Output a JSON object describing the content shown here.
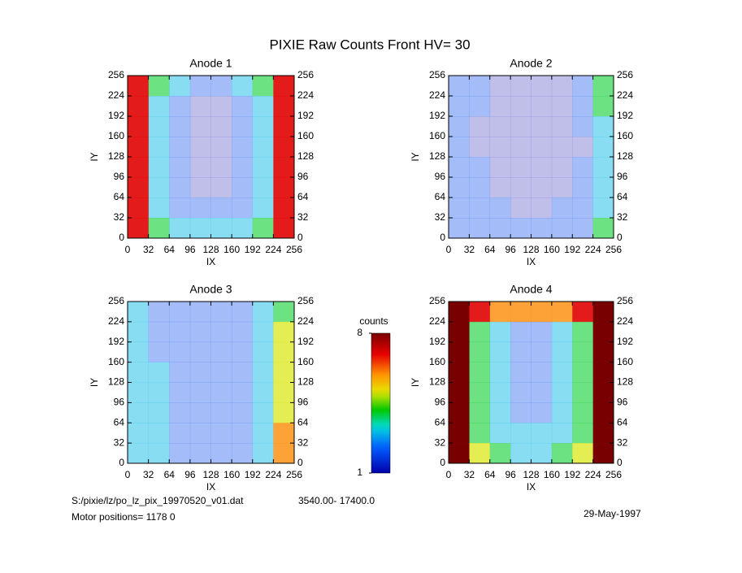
{
  "title": "PIXIE Raw Counts Front HV= 30",
  "chart_data": [
    {
      "type": "heatmap",
      "title": "Anode 1",
      "x_label": "IX",
      "y_label": "IY",
      "xlim": [
        0,
        256
      ],
      "ylim": [
        0,
        256
      ],
      "xticks": [
        0,
        32,
        64,
        96,
        128,
        160,
        192,
        224,
        256
      ],
      "yticks": [
        0,
        32,
        64,
        96,
        128,
        160,
        192,
        224,
        256
      ],
      "values": [
        [
          7,
          4,
          3,
          2,
          2,
          3,
          4,
          7
        ],
        [
          7,
          3,
          2,
          1,
          1,
          2,
          3,
          7
        ],
        [
          7,
          3,
          2,
          1,
          1,
          2,
          3,
          7
        ],
        [
          7,
          3,
          2,
          1,
          1,
          2,
          3,
          7
        ],
        [
          7,
          3,
          2,
          1,
          1,
          2,
          3,
          7
        ],
        [
          7,
          3,
          2,
          1,
          1,
          2,
          3,
          7
        ],
        [
          7,
          3,
          2,
          2,
          2,
          2,
          3,
          7
        ],
        [
          7,
          4,
          3,
          3,
          3,
          3,
          4,
          7
        ]
      ]
    },
    {
      "type": "heatmap",
      "title": "Anode 2",
      "x_label": "IX",
      "y_label": "IY",
      "xlim": [
        0,
        256
      ],
      "ylim": [
        0,
        256
      ],
      "xticks": [
        0,
        32,
        64,
        96,
        128,
        160,
        192,
        224,
        256
      ],
      "yticks": [
        0,
        32,
        64,
        96,
        128,
        160,
        192,
        224,
        256
      ],
      "values": [
        [
          2,
          2,
          1,
          1,
          1,
          1,
          2,
          4
        ],
        [
          2,
          2,
          1,
          1,
          1,
          1,
          2,
          4
        ],
        [
          2,
          1,
          1,
          1,
          1,
          1,
          2,
          3
        ],
        [
          2,
          1,
          1,
          1,
          1,
          1,
          1,
          3
        ],
        [
          2,
          2,
          1,
          1,
          1,
          1,
          2,
          3
        ],
        [
          2,
          2,
          1,
          1,
          1,
          1,
          2,
          3
        ],
        [
          2,
          2,
          2,
          1,
          1,
          2,
          2,
          3
        ],
        [
          2,
          2,
          2,
          2,
          2,
          2,
          2,
          4
        ]
      ]
    },
    {
      "type": "heatmap",
      "title": "Anode 3",
      "x_label": "IX",
      "y_label": "IY",
      "xlim": [
        0,
        256
      ],
      "ylim": [
        0,
        256
      ],
      "xticks": [
        0,
        32,
        64,
        96,
        128,
        160,
        192,
        224,
        256
      ],
      "yticks": [
        0,
        32,
        64,
        96,
        128,
        160,
        192,
        224,
        256
      ],
      "values": [
        [
          3,
          2,
          2,
          2,
          2,
          2,
          3,
          4
        ],
        [
          3,
          2,
          2,
          2,
          2,
          2,
          3,
          5
        ],
        [
          3,
          2,
          2,
          2,
          2,
          2,
          3,
          5
        ],
        [
          3,
          3,
          2,
          2,
          2,
          2,
          3,
          5
        ],
        [
          3,
          3,
          2,
          2,
          2,
          2,
          3,
          5
        ],
        [
          3,
          3,
          2,
          2,
          2,
          2,
          3,
          5
        ],
        [
          3,
          3,
          2,
          2,
          2,
          2,
          3,
          6
        ],
        [
          3,
          3,
          2,
          2,
          2,
          2,
          3,
          6
        ]
      ]
    },
    {
      "type": "heatmap",
      "title": "Anode 4",
      "x_label": "IX",
      "y_label": "IY",
      "xlim": [
        0,
        256
      ],
      "ylim": [
        0,
        256
      ],
      "xticks": [
        0,
        32,
        64,
        96,
        128,
        160,
        192,
        224,
        256
      ],
      "yticks": [
        0,
        32,
        64,
        96,
        128,
        160,
        192,
        224,
        256
      ],
      "values": [
        [
          8,
          7,
          6,
          6,
          6,
          6,
          7,
          8
        ],
        [
          8,
          4,
          3,
          2,
          2,
          3,
          4,
          8
        ],
        [
          8,
          4,
          3,
          2,
          2,
          3,
          4,
          8
        ],
        [
          8,
          4,
          3,
          2,
          2,
          3,
          4,
          8
        ],
        [
          8,
          4,
          3,
          2,
          2,
          3,
          4,
          8
        ],
        [
          8,
          4,
          3,
          2,
          2,
          3,
          4,
          8
        ],
        [
          8,
          4,
          3,
          3,
          3,
          3,
          4,
          8
        ],
        [
          8,
          5,
          4,
          3,
          3,
          4,
          5,
          8
        ]
      ]
    }
  ],
  "colorbar": {
    "label": "counts",
    "lim": [
      1,
      8
    ],
    "ticks": [
      1,
      8
    ]
  },
  "footer": {
    "file": "S:/pixie/lz/po_lz_pix_19970520_v01.dat",
    "range": "3540.00- 17400.0",
    "motor": "Motor positions= 1178 0",
    "date": "29-May-1997"
  }
}
